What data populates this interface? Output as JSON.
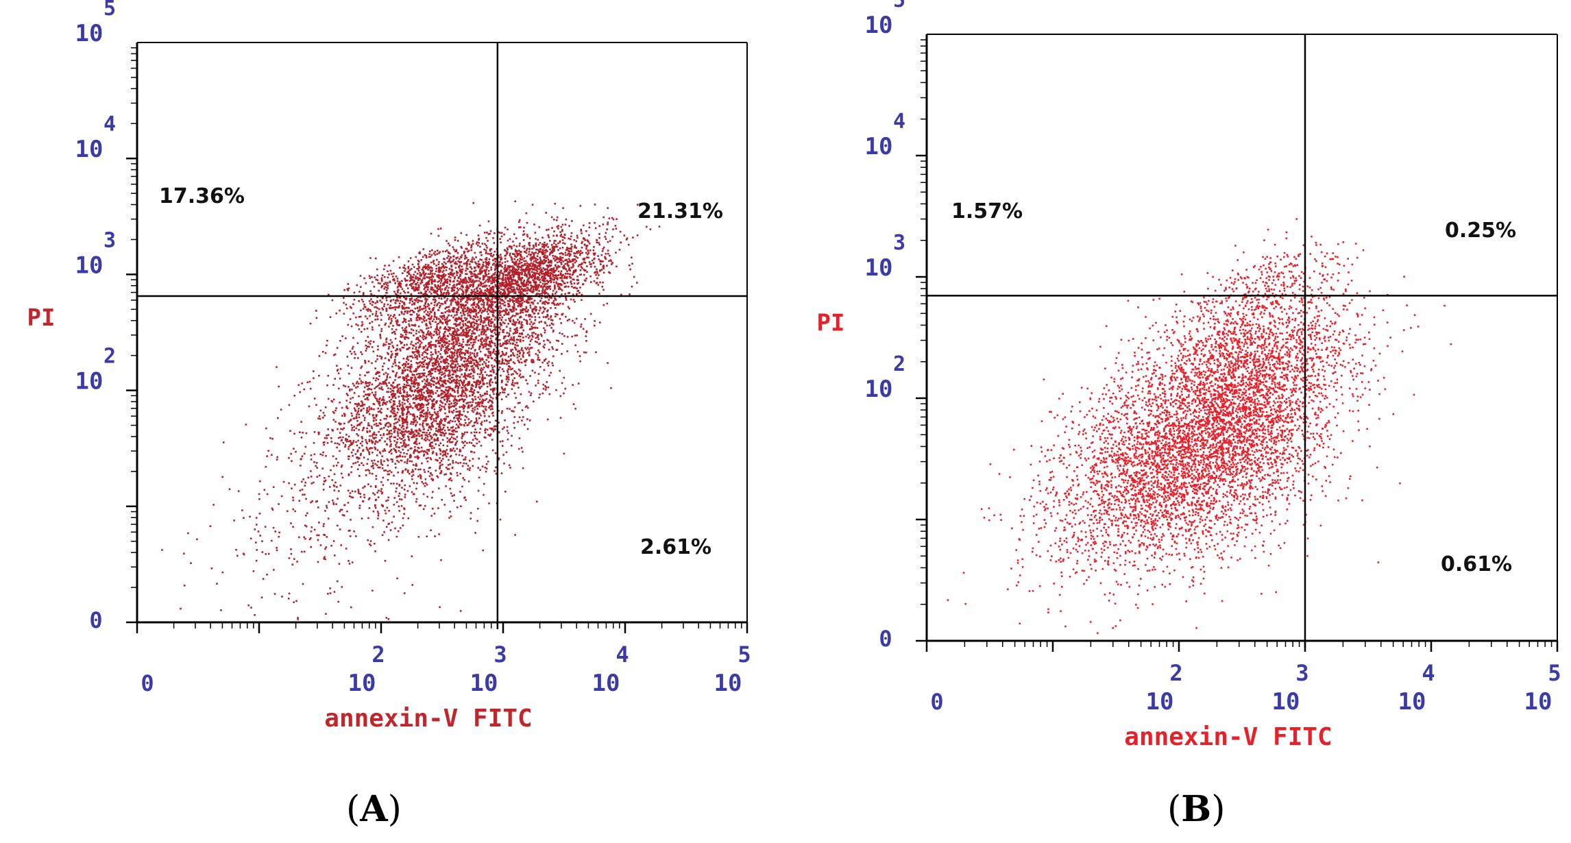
{
  "figure": {
    "panel_a_label": "A",
    "panel_b_label": "B"
  },
  "chart_data": [
    {
      "type": "scatter",
      "panel": "A",
      "xlabel": "annexin-V FITC",
      "ylabel": "PI",
      "x_scale": "log",
      "y_scale": "log",
      "xlim": [
        1,
        100000
      ],
      "ylim": [
        1,
        100000
      ],
      "x_ticks": [
        {
          "base": "10",
          "exp": "0"
        },
        {
          "base": "10",
          "exp": "2"
        },
        {
          "base": "10",
          "exp": "3"
        },
        {
          "base": "10",
          "exp": "4"
        },
        {
          "base": "10",
          "exp": "5"
        }
      ],
      "y_ticks": [
        {
          "base": "",
          "exp": "0"
        },
        {
          "base": "10",
          "exp": "2"
        },
        {
          "base": "10",
          "exp": "3"
        },
        {
          "base": "10",
          "exp": "4"
        },
        {
          "base": "10",
          "exp": "5"
        }
      ],
      "quadrant_gates": {
        "x": 900,
        "y": 650
      },
      "quadrants": {
        "upper_left": "17.36%",
        "upper_right": "21.31%",
        "lower_left": "",
        "lower_right": "2.61%"
      },
      "point_color": "#b3202a",
      "axis_label_color": "#c0272d",
      "tick_color": "#3a3aa8",
      "clusters": [
        {
          "x": 250,
          "y": 90,
          "spread_x": 0.35,
          "spread_y": 0.35,
          "count": 3400
        },
        {
          "x": 1500,
          "y": 950,
          "spread_x": 0.28,
          "spread_y": 0.14,
          "count": 1800
        },
        {
          "x": 250,
          "y": 900,
          "spread_x": 0.28,
          "spread_y": 0.12,
          "count": 900
        },
        {
          "x": 800,
          "y": 350,
          "spread_x": 0.3,
          "spread_y": 0.25,
          "count": 1100
        },
        {
          "x": 30,
          "y": 8,
          "spread_x": 0.4,
          "spread_y": 0.4,
          "count": 250
        }
      ]
    },
    {
      "type": "scatter",
      "panel": "B",
      "xlabel": "annexin-V FITC",
      "ylabel": "PI",
      "x_scale": "log",
      "y_scale": "log",
      "xlim": [
        1,
        100000
      ],
      "ylim": [
        1,
        100000
      ],
      "x_ticks": [
        {
          "base": "10",
          "exp": "0"
        },
        {
          "base": "10",
          "exp": "2"
        },
        {
          "base": "10",
          "exp": "3"
        },
        {
          "base": "10",
          "exp": "4"
        },
        {
          "base": "10",
          "exp": "5"
        }
      ],
      "y_ticks": [
        {
          "base": "",
          "exp": "0"
        },
        {
          "base": "10",
          "exp": "2"
        },
        {
          "base": "10",
          "exp": "3"
        },
        {
          "base": "10",
          "exp": "4"
        },
        {
          "base": "10",
          "exp": "5"
        }
      ],
      "quadrant_gates": {
        "x": 1000,
        "y": 700
      },
      "quadrants": {
        "upper_left": "1.57%",
        "upper_right": "0.25%",
        "lower_left": "",
        "lower_right": "0.61%"
      },
      "point_color": "#e8202a",
      "axis_label_color": "#e8202a",
      "tick_color": "#3a3aa8",
      "clusters": [
        {
          "x": 130,
          "y": 35,
          "spread_x": 0.45,
          "spread_y": 0.35,
          "count": 4200
        },
        {
          "x": 350,
          "y": 180,
          "spread_x": 0.35,
          "spread_y": 0.3,
          "count": 1800
        },
        {
          "x": 500,
          "y": 900,
          "spread_x": 0.25,
          "spread_y": 0.1,
          "count": 180
        },
        {
          "x": 30,
          "y": 20,
          "spread_x": 0.3,
          "spread_y": 0.3,
          "count": 200
        }
      ]
    }
  ]
}
